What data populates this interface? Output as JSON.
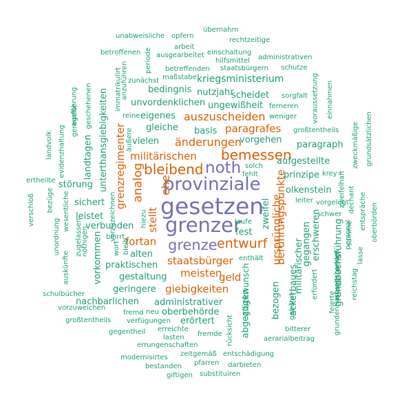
{
  "colors": {
    "green": "#1b9e77",
    "orange": "#d95f02",
    "purple": "#7570b3"
  },
  "words": {
    "gesetzen": "gesetzen",
    "grenzer": "grenzer",
    "provinziale": "provinziale",
    "noth": "noth",
    "bleibend": "bleibend",
    "grenze": "grenze",
    "entwurf": "entwurf",
    "bemessen": "bemessen",
    "ehe": "ehe",
    "analog": "analog",
    "auszuscheiden": "auszuscheiden",
    "paragrafes": "paragrafes",
    "aenderungen": "änderungen",
    "militaerischen": "militärischen",
    "grenzregimenter": "grenzregimenter",
    "fortan": "fortan",
    "stellt": "stellt",
    "staatsbuerger": "staatsbürger",
    "meisten": "meisten",
    "geld": "geld",
    "giebigkeiten": "giebigkeiten",
    "beruehrungspunkte": "berührungspunkte",
    "urspruengliche": "ursprüngliche",
    "kriegsministerium": "kriegsministerium",
    "unvordenklichen": "unvordenklichen",
    "ungewissheit": "ungewißheit",
    "eigenes": "eigenes",
    "gleiche": "gleiche",
    "vielen": "vielen",
    "basis": "basis",
    "vorgehen": "vorgehen",
    "paragraph": "paragraph",
    "aufgestellte": "aufgestellte",
    "prinzipe": "prinzipe",
    "olkenstein": "olkenstein",
    "landtagen": "landtagen",
    "unterthansgiebigkeiten": "unterthansgiebigkeiten",
    "stoerung": "störung",
    "sichert": "sichert",
    "leistet": "leistet",
    "verbunden": "verbunden",
    "alten": "alten",
    "praktischen": "praktischen",
    "gestaltung": "gestaltung",
    "geringere": "geringere",
    "nachbarlichen": "nachbarlichen",
    "administrativer": "administrativer",
    "oberbehoerde": "oberbehörde",
    "eroertert": "erörtert",
    "bedingnis": "bedingnis",
    "nutzjahr": "nutzjahr",
    "scheidet": "scheidet",
    "zweifel": "zweifel",
    "fest": "fest",
    "abgezogen": "abgezogen",
    "gluckwunsch": "glückwunsch",
    "bezogen": "bezogen",
    "ackerbaues": "ackerbaues",
    "militaerischer": "militärischer",
    "gegangen": "gegangen",
    "erschweren": "erschweren",
    "grundbuchsfuehrung": "grundbuchsführung",
    "vorkommen": "vorkommen",
    "solch": "solch",
    "fehlt": "fehlt",
    "laufe": "laufe",
    "enthaelt": "enthält",
    "leiter": "leiter",
    "vorgelegt": "vorgelegt",
    "schwer": "schwer",
    "krey": "krey",
    "ferneren": "ferneren",
    "sorgfalt": "sorgfalt",
    "weniger": "weniger",
    "grosstentheils_r": "großtentheils",
    "zweifelhaft": "zweifelhaft",
    "dechant": "dechant",
    "entspraeche": "entspräche",
    "oberboerden": "oberbörden",
    "summe": "summe",
    "personal": "personal",
    "zweckmaessige": "zweckmäßige",
    "grundsaetzlichen": "grundsätzlichen",
    "voraussetzung": "voraussetzung",
    "einnahmen": "einnahmen",
    "ausgesprengt": "ausgesprengt",
    "feierte": "feierte",
    "reichstag": "reichstag",
    "lasse": "lasse",
    "grundentlastungsbandes": "grundentlastungsbandes",
    "erfordert": "erfordert",
    "gebuehrt": "gebührt",
    "bitterer": "bitterer",
    "aerarialbeitrag": "aerarialbeitrag",
    "fremde": "fremde",
    "rueckicht": "rücksicht",
    "unabweisliche": "unabweisliche",
    "opfern": "opfern",
    "uebernahm": "übernahm",
    "rechtzeitige": "rechtzeitige",
    "arbeit": "arbeit",
    "betroffenen": "betroffenen",
    "ausgearbeitet": "ausgearbeitet",
    "einschaltung": "einschaltung",
    "administrativen": "administrativen",
    "hilfsmittel": "hilfsmittel",
    "periode": "periode",
    "betreffenden": "betreffenden",
    "staatsbuergern": "staatsbürgern",
    "schutze": "schutze",
    "massstabe": "maßstabe",
    "zunaechst": "zunächst",
    "immatrikulirt": "immatrikulirt",
    "anzufuehren": "anzuführen",
    "geschehenen": "geschehenen",
    "ausfuehrung": "ausführung",
    "geregelte": "geregelte",
    "landvolk": "landvolk",
    "evidenzhaltung": "evidenzhaltung",
    "aeussere": "äußere",
    "reine": "reine",
    "ertheilte": "ertheilte",
    "verschloss": "verschloß",
    "bezuege": "bezüge",
    "wesentliche": "wesentliche",
    "zugelassen": "zugelassen",
    "noethigen": "nöthigen",
    "unordnung": "unordnung",
    "auskuenfte": "auskünfte",
    "vorzuzeichnen": "vorzuzeichnen",
    "hiezu": "hiezu",
    "wort": "wort",
    "beirrt": "beirrt",
    "bleib": "bleib",
    "schulbuecher": "schulbücher",
    "vorzuweichen": "vorzuweichen",
    "grosstentheils_l": "großtentheils",
    "fremd": "fremd",
    "neu": "neu",
    "verfuegungen": "verfügungen",
    "gegentheil": "gegentheil",
    "erreichte": "erreichte",
    "lasten": "lasten",
    "errungenschaften": "errungenschaften",
    "modernisirtes": "modernisirtes",
    "zeitgemaess": "zeitgemäß",
    "entschaedigung": "entschädigung",
    "pfarren": "pfarren",
    "bestanden": "bestanden",
    "darbieten": "darbieten",
    "giftigen": "giftigen",
    "substituiren": "substituiren"
  }
}
